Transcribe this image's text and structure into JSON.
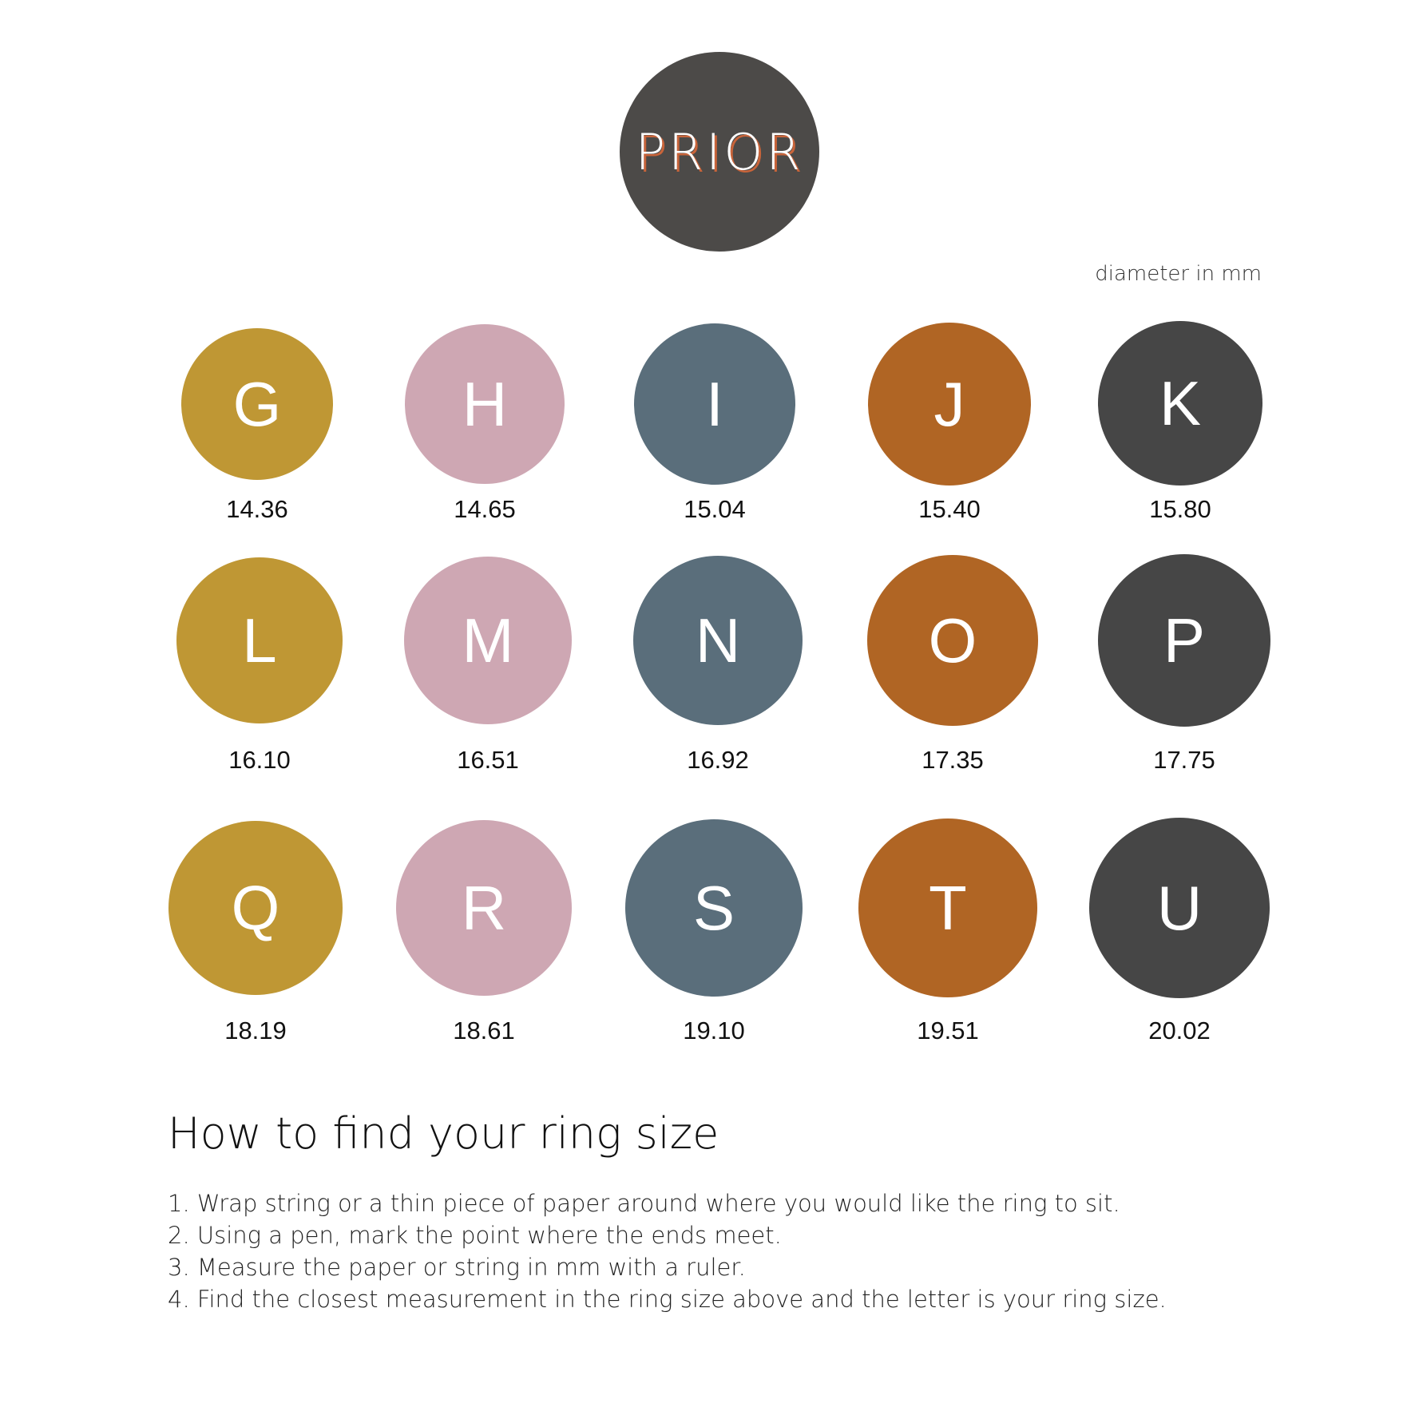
{
  "logo": {
    "text": "PRIOR",
    "background": "#4c4a48",
    "accent": "#c8643a"
  },
  "unit_label": "diameter in mm",
  "colors": {
    "gold": "#bf9734",
    "pink": "#cea7b3",
    "slate": "#5a6e7b",
    "orange": "#b06524",
    "charcoal": "#464646"
  },
  "sizes": [
    {
      "letter": "G",
      "mm": "14.36",
      "color": "#bf9734"
    },
    {
      "letter": "H",
      "mm": "14.65",
      "color": "#cea7b3"
    },
    {
      "letter": "I",
      "mm": "15.04",
      "color": "#5a6e7b"
    },
    {
      "letter": "J",
      "mm": "15.40",
      "color": "#b06524"
    },
    {
      "letter": "K",
      "mm": "15.80",
      "color": "#464646"
    },
    {
      "letter": "L",
      "mm": "16.10",
      "color": "#bf9734"
    },
    {
      "letter": "M",
      "mm": "16.51",
      "color": "#cea7b3"
    },
    {
      "letter": "N",
      "mm": "16.92",
      "color": "#5a6e7b"
    },
    {
      "letter": "O",
      "mm": "17.35",
      "color": "#b06524"
    },
    {
      "letter": "P",
      "mm": "17.75",
      "color": "#464646"
    },
    {
      "letter": "Q",
      "mm": "18.19",
      "color": "#bf9734"
    },
    {
      "letter": "R",
      "mm": "18.61",
      "color": "#cea7b3"
    },
    {
      "letter": "S",
      "mm": "19.10",
      "color": "#5a6e7b"
    },
    {
      "letter": "T",
      "mm": "19.51",
      "color": "#b06524"
    },
    {
      "letter": "U",
      "mm": "20.02",
      "color": "#464646"
    }
  ],
  "instructions": {
    "heading": "How to find your ring size",
    "steps": [
      "1. Wrap string or a thin piece of paper around where you would like the ring to sit.",
      "2. Using a pen, mark the point where the ends meet.",
      "3. Measure the paper or string in mm with a ruler.",
      "4. Find the closest measurement in the ring size above and the letter is your ring size."
    ]
  }
}
